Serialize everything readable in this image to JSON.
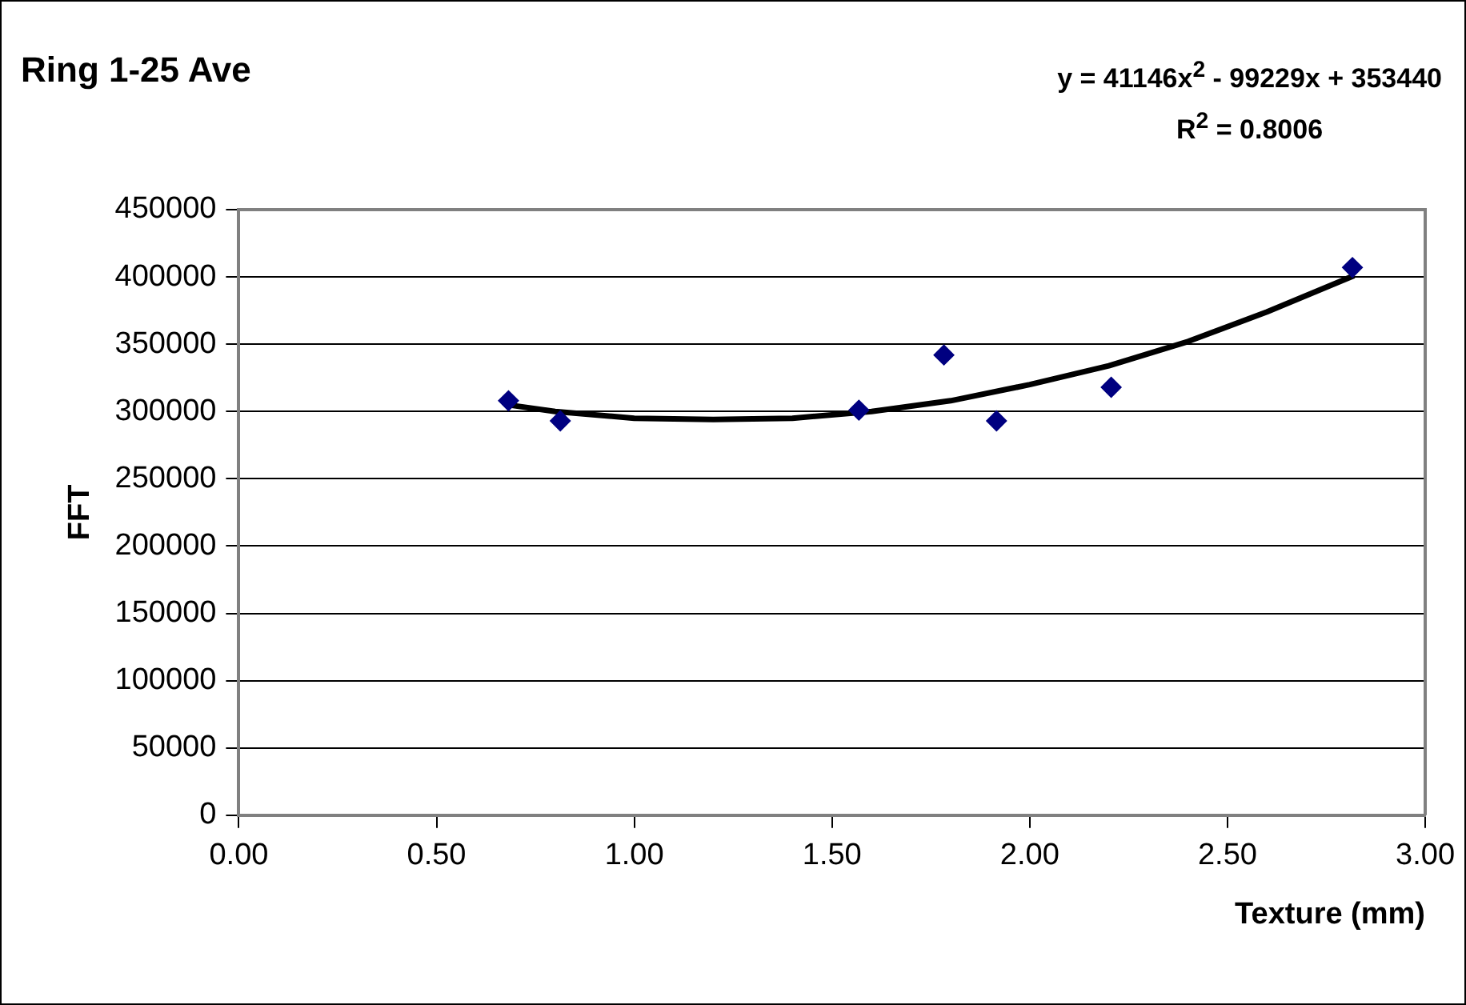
{
  "chart_data": {
    "type": "scatter",
    "title": "Ring 1-25 Ave",
    "annotations": [
      "y = 41146x$^{2}$ - 99229x + 353440",
      "R$^{2}$ = 0.8006"
    ],
    "xlabel": "Texture (mm)",
    "ylabel": "FFT",
    "series": [
      {
        "color": "#000080",
        "marker": "diamond",
        "x": [
          0.682,
          0.813,
          1.568,
          1.783,
          1.916,
          2.206,
          2.816
        ],
        "values": [
          308000,
          293000,
          301000,
          342000,
          293000,
          318000,
          407000
        ]
      },
      {
        "type": "line",
        "color": "#000000",
        "marker": "none",
        "x": [
          0.68,
          0.8,
          1.0,
          1.2,
          1.4,
          1.6,
          1.8,
          2.0,
          2.2,
          2.4,
          2.6,
          2.82
        ],
        "values": [
          305000,
          300000,
          295000,
          294000,
          295000,
          300000,
          308000,
          320000,
          334000,
          352000,
          374000,
          401000
        ]
      }
    ],
    "xlim": [
      0,
      3
    ],
    "xticks": [
      {
        "value": 0,
        "label": "0.00"
      },
      {
        "value": 0.5,
        "label": "0.50"
      },
      {
        "value": 1,
        "label": "1.00"
      },
      {
        "value": 1.5,
        "label": "1.50"
      },
      {
        "value": 2,
        "label": "2.00"
      },
      {
        "value": 2.5,
        "label": "2.50"
      },
      {
        "value": 3,
        "label": "3.00"
      }
    ],
    "ylim": [
      0,
      450000
    ],
    "yticks": [
      0,
      50000,
      100000,
      150000,
      200000,
      250000,
      300000,
      350000,
      400000,
      450000
    ],
    "grid": "y",
    "legend": false
  }
}
